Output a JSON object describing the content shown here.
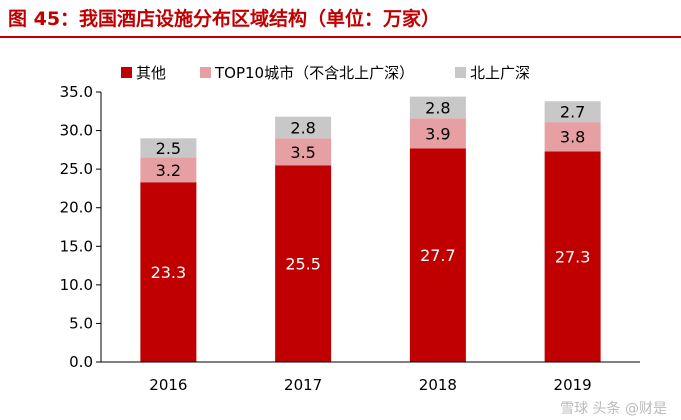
{
  "figure_title": "图 45：我国酒店设施分布区域结构（单位：万家）",
  "watermark": "雪球 头条 @财是",
  "colors": {
    "accent": "#c00000",
    "series": [
      "#c00000",
      "#e6a0a4",
      "#c8c8c8"
    ]
  },
  "chart_data": {
    "type": "bar",
    "stacked": true,
    "categories": [
      "2016",
      "2017",
      "2018",
      "2019"
    ],
    "series": [
      {
        "name": "其他",
        "values": [
          23.3,
          25.5,
          27.7,
          27.3
        ]
      },
      {
        "name": "TOP10城市（不含北上广深）",
        "values": [
          3.2,
          3.5,
          3.9,
          3.8
        ]
      },
      {
        "name": "北上广深",
        "values": [
          2.5,
          2.8,
          2.8,
          2.7
        ]
      }
    ],
    "title": "",
    "xlabel": "",
    "ylabel": "",
    "ylim": [
      0,
      35
    ],
    "yticks": [
      "0.0",
      "5.0",
      "10.0",
      "15.0",
      "20.0",
      "25.0",
      "30.0",
      "35.0"
    ],
    "legend_position": "top",
    "grid": false
  }
}
